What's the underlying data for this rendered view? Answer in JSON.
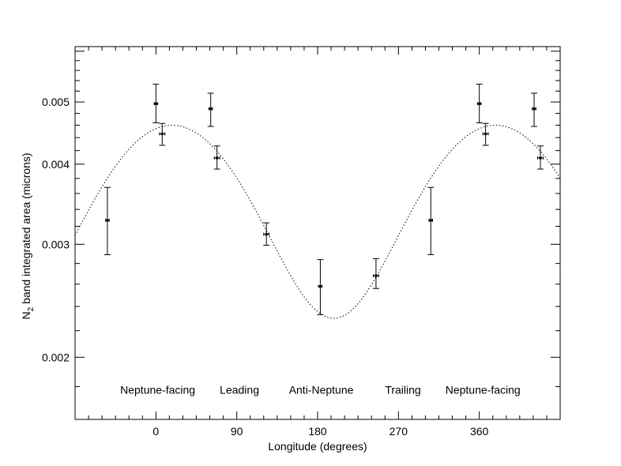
{
  "chart_data": {
    "type": "scatter",
    "xlabel": "Longitude (degrees)",
    "ylabel": {
      "main": "N",
      "sub": "2",
      "rest": " band integrated area (microns)"
    },
    "xlim": [
      -90,
      450
    ],
    "ylim": [
      0.0016,
      0.0061
    ],
    "yscale": "log",
    "x_ticks": [
      0,
      90,
      180,
      270,
      360
    ],
    "y_ticks": [
      0.002,
      0.003,
      0.004,
      0.005
    ],
    "y_tick_labels": [
      "0.002",
      "0.003",
      "0.004",
      "0.005"
    ],
    "x_tick_labels": [
      "0",
      "90",
      "180",
      "270",
      "360"
    ],
    "series": [
      {
        "type": "errorbar",
        "points": [
          {
            "x": -54,
            "y": 0.00327,
            "ylo": 0.00289,
            "yhi": 0.00368,
            "xerr": 2
          },
          {
            "x": 0,
            "y": 0.00497,
            "ylo": 0.00464,
            "yhi": 0.00533,
            "xerr": 2
          },
          {
            "x": 7,
            "y": 0.00446,
            "ylo": 0.00428,
            "yhi": 0.00463,
            "xerr": 3
          },
          {
            "x": 61,
            "y": 0.00488,
            "ylo": 0.00458,
            "yhi": 0.00516,
            "xerr": 2
          },
          {
            "x": 68,
            "y": 0.00409,
            "ylo": 0.00393,
            "yhi": 0.00427,
            "xerr": 3
          },
          {
            "x": 123,
            "y": 0.00311,
            "ylo": 0.00299,
            "yhi": 0.00324,
            "xerr": 3
          },
          {
            "x": 183,
            "y": 0.00258,
            "ylo": 0.00233,
            "yhi": 0.00284,
            "xerr": 2
          },
          {
            "x": 245,
            "y": 0.00268,
            "ylo": 0.00256,
            "yhi": 0.00285,
            "xerr": 3
          },
          {
            "x": 306,
            "y": 0.00327,
            "ylo": 0.00289,
            "yhi": 0.00368,
            "xerr": 2
          },
          {
            "x": 360,
            "y": 0.00497,
            "ylo": 0.00464,
            "yhi": 0.00533,
            "xerr": 2
          },
          {
            "x": 367,
            "y": 0.00446,
            "ylo": 0.00428,
            "yhi": 0.00463,
            "xerr": 3
          },
          {
            "x": 421,
            "y": 0.00488,
            "ylo": 0.00458,
            "yhi": 0.00516,
            "xerr": 2
          },
          {
            "x": 428,
            "y": 0.00409,
            "ylo": 0.00393,
            "yhi": 0.00427,
            "xerr": 3
          }
        ]
      },
      {
        "type": "line",
        "style": "dotted",
        "model": "sinusoid",
        "mean": 0.00345,
        "amplitude": 0.00115,
        "peak_longitude": 18,
        "period": 360
      }
    ],
    "annotations": [
      {
        "text": "Neptune-facing",
        "x": 2,
        "y": 0.00178
      },
      {
        "text": "Leading",
        "x": 93,
        "y": 0.00178
      },
      {
        "text": "Anti-Neptune",
        "x": 184,
        "y": 0.00178
      },
      {
        "text": "Trailing",
        "x": 275,
        "y": 0.00178
      },
      {
        "text": "Neptune-facing",
        "x": 364,
        "y": 0.00178
      }
    ]
  }
}
